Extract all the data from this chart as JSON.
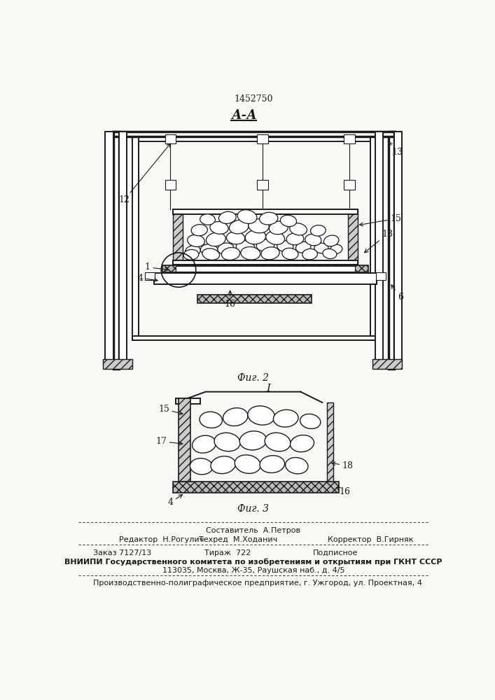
{
  "patent_number": "1452750",
  "section_label": "А-А",
  "fig2_label": "Фиг. 2",
  "fig3_label": "Фиг. 3",
  "fig3_I_label": "I",
  "footer_composer": "Составитель  А.Петров",
  "footer_editor": "Редактор  Н.Рогулич",
  "footer_techred": "Техред  М.Ходанич",
  "footer_corrector": "Корректор  В.Гирняк",
  "footer_order": "Заказ 7127/13",
  "footer_tirazh": "Тираж  722",
  "footer_podpisnoe": "Подписное",
  "footer_vniipи": "ВНИИПИ Государственного комитета по изобретениям и открытиям при ГКНТ СССР",
  "footer_address": "113035, Москва, Ж-35, Раушская наб., д. 4/5",
  "footer_proizv": "Производственно-полиграфическое предприятие, г. Ужгород, ул. Проектная, 4",
  "bg_color": "#f8f8f5",
  "line_color": "#1a1a1a"
}
